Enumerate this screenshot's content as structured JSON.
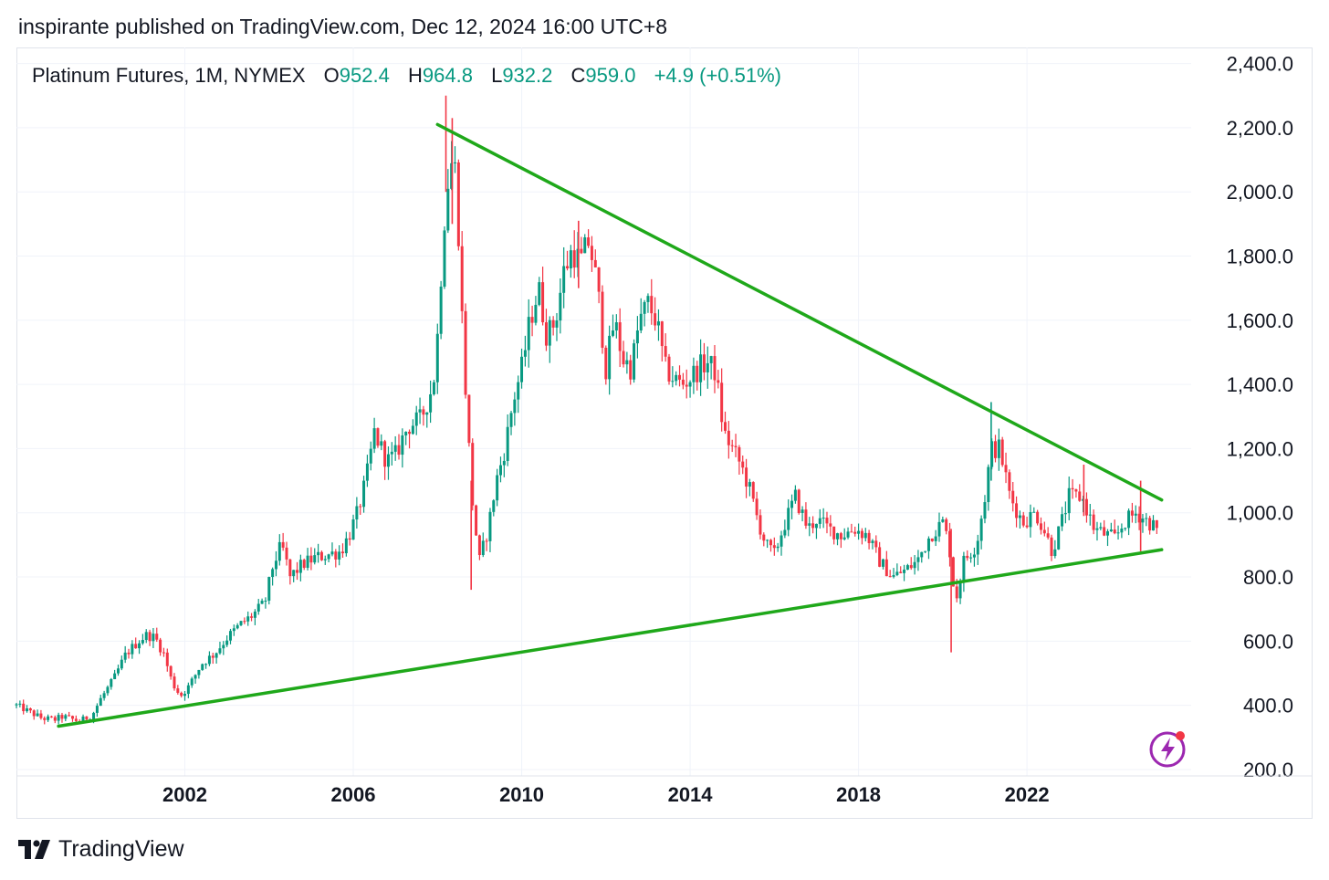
{
  "header": {
    "published_text": "inspirante published on TradingView.com, Dec 12, 2024 16:00 UTC+8"
  },
  "legend": {
    "symbol": "Platinum Futures, 1M, NYMEX",
    "open_label": "O",
    "open": "952.4",
    "high_label": "H",
    "high": "964.8",
    "low_label": "L",
    "low": "932.2",
    "close_label": "C",
    "close": "959.0",
    "change": "+4.9 (+0.51%)"
  },
  "footer": {
    "brand": "TradingView"
  },
  "colors": {
    "up": "#089981",
    "down": "#f23645",
    "trendline": "#1fa81a",
    "grid": "#f0f3fa",
    "accent_bolt": "#9c27b0"
  },
  "icons": {
    "logo": "tradingview-logo-icon",
    "bolt": "lightning-bolt-icon"
  },
  "chart_data": {
    "type": "candlestick",
    "interval": "1M",
    "x_range": [
      1998.0,
      2025.9
    ],
    "ylim": [
      180,
      2450
    ],
    "yticks": [
      {
        "value": 200,
        "label": "200.0"
      },
      {
        "value": 400,
        "label": "400.0"
      },
      {
        "value": 600,
        "label": "600.0"
      },
      {
        "value": 800,
        "label": "800.0"
      },
      {
        "value": 1000,
        "label": "1,000.0"
      },
      {
        "value": 1200,
        "label": "1,200.0"
      },
      {
        "value": 1400,
        "label": "1,400.0"
      },
      {
        "value": 1600,
        "label": "1,600.0"
      },
      {
        "value": 1800,
        "label": "1,800.0"
      },
      {
        "value": 2000,
        "label": "2,000.0"
      },
      {
        "value": 2200,
        "label": "2,200.0"
      },
      {
        "value": 2400,
        "label": "2,400.0"
      }
    ],
    "xticks": [
      {
        "value": 2002,
        "label": "2002"
      },
      {
        "value": 2006,
        "label": "2006"
      },
      {
        "value": 2010,
        "label": "2010"
      },
      {
        "value": 2014,
        "label": "2014"
      },
      {
        "value": 2018,
        "label": "2018"
      },
      {
        "value": 2022,
        "label": "2022"
      }
    ],
    "price_path": [
      [
        1998.0,
        400
      ],
      [
        1998.3,
        380
      ],
      [
        1998.6,
        360
      ],
      [
        1998.9,
        355
      ],
      [
        1999.1,
        365
      ],
      [
        1999.5,
        350
      ],
      [
        1999.8,
        370
      ],
      [
        2000.0,
        420
      ],
      [
        2000.3,
        480
      ],
      [
        2000.6,
        560
      ],
      [
        2000.9,
        600
      ],
      [
        2001.1,
        620
      ],
      [
        2001.3,
        610
      ],
      [
        2001.5,
        560
      ],
      [
        2001.7,
        470
      ],
      [
        2001.9,
        430
      ],
      [
        2002.1,
        460
      ],
      [
        2002.4,
        530
      ],
      [
        2002.7,
        560
      ],
      [
        2003.0,
        610
      ],
      [
        2003.3,
        650
      ],
      [
        2003.6,
        680
      ],
      [
        2003.9,
        720
      ],
      [
        2004.1,
        840
      ],
      [
        2004.3,
        900
      ],
      [
        2004.5,
        800
      ],
      [
        2004.8,
        840
      ],
      [
        2005.1,
        860
      ],
      [
        2005.4,
        870
      ],
      [
        2005.7,
        880
      ],
      [
        2005.9,
        930
      ],
      [
        2006.1,
        1000
      ],
      [
        2006.3,
        1100
      ],
      [
        2006.5,
        1250
      ],
      [
        2006.8,
        1160
      ],
      [
        2007.0,
        1180
      ],
      [
        2007.3,
        1270
      ],
      [
        2007.6,
        1290
      ],
      [
        2007.9,
        1400
      ],
      [
        2008.0,
        1550
      ],
      [
        2008.15,
        1900
      ],
      [
        2008.3,
        2100
      ],
      [
        2008.45,
        2060
      ],
      [
        2008.55,
        1700
      ],
      [
        2008.7,
        1300
      ],
      [
        2008.85,
        1000
      ],
      [
        2009.0,
        850
      ],
      [
        2009.2,
        950
      ],
      [
        2009.4,
        1100
      ],
      [
        2009.6,
        1200
      ],
      [
        2009.8,
        1350
      ],
      [
        2010.0,
        1450
      ],
      [
        2010.2,
        1600
      ],
      [
        2010.4,
        1700
      ],
      [
        2010.6,
        1550
      ],
      [
        2010.8,
        1600
      ],
      [
        2011.0,
        1750
      ],
      [
        2011.2,
        1820
      ],
      [
        2011.4,
        1780
      ],
      [
        2011.6,
        1850
      ],
      [
        2011.8,
        1700
      ],
      [
        2012.0,
        1450
      ],
      [
        2012.2,
        1600
      ],
      [
        2012.4,
        1480
      ],
      [
        2012.6,
        1450
      ],
      [
        2012.8,
        1600
      ],
      [
        2013.0,
        1650
      ],
      [
        2013.2,
        1600
      ],
      [
        2013.4,
        1450
      ],
      [
        2013.6,
        1420
      ],
      [
        2013.8,
        1400
      ],
      [
        2014.0,
        1420
      ],
      [
        2014.2,
        1450
      ],
      [
        2014.4,
        1470
      ],
      [
        2014.6,
        1440
      ],
      [
        2014.8,
        1250
      ],
      [
        2015.0,
        1200
      ],
      [
        2015.2,
        1150
      ],
      [
        2015.4,
        1080
      ],
      [
        2015.6,
        980
      ],
      [
        2015.8,
        900
      ],
      [
        2016.0,
        870
      ],
      [
        2016.2,
        950
      ],
      [
        2016.5,
        1050
      ],
      [
        2016.8,
        950
      ],
      [
        2017.0,
        980
      ],
      [
        2017.3,
        950
      ],
      [
        2017.6,
        930
      ],
      [
        2017.9,
        950
      ],
      [
        2018.2,
        930
      ],
      [
        2018.5,
        850
      ],
      [
        2018.8,
        800
      ],
      [
        2019.1,
        820
      ],
      [
        2019.4,
        850
      ],
      [
        2019.7,
        930
      ],
      [
        2020.0,
        970
      ],
      [
        2020.15,
        900
      ],
      [
        2020.3,
        720
      ],
      [
        2020.5,
        850
      ],
      [
        2020.8,
        900
      ],
      [
        2021.0,
        1050
      ],
      [
        2021.15,
        1200
      ],
      [
        2021.35,
        1200
      ],
      [
        2021.6,
        1050
      ],
      [
        2021.9,
        970
      ],
      [
        2022.2,
        1000
      ],
      [
        2022.4,
        950
      ],
      [
        2022.6,
        880
      ],
      [
        2022.8,
        960
      ],
      [
        2023.0,
        1050
      ],
      [
        2023.3,
        1050
      ],
      [
        2023.6,
        950
      ],
      [
        2023.9,
        930
      ],
      [
        2024.1,
        920
      ],
      [
        2024.3,
        970
      ],
      [
        2024.6,
        1000
      ],
      [
        2024.8,
        980
      ],
      [
        2025.0,
        960
      ],
      [
        2025.1,
        945
      ]
    ],
    "trendlines": [
      {
        "from": [
          1999.0,
          335
        ],
        "to": [
          2025.2,
          885
        ]
      },
      {
        "from": [
          2008.0,
          2210
        ],
        "to": [
          2025.2,
          1040
        ]
      }
    ],
    "spikes": [
      {
        "x": 2008.2,
        "low": 2000,
        "high": 2300
      },
      {
        "x": 2008.35,
        "low": 1900,
        "high": 2230
      },
      {
        "x": 2008.8,
        "low": 760,
        "high": 1100
      },
      {
        "x": 2011.35,
        "low": 1700,
        "high": 1910
      },
      {
        "x": 2020.2,
        "low": 565,
        "high": 950
      },
      {
        "x": 2021.15,
        "low": 1100,
        "high": 1345
      },
      {
        "x": 2023.35,
        "low": 990,
        "high": 1150
      },
      {
        "x": 2024.7,
        "low": 880,
        "high": 1100
      }
    ]
  }
}
